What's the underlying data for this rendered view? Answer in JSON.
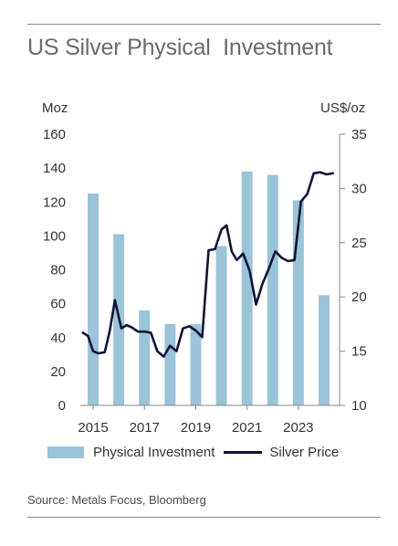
{
  "title": "US Silver Physical  Investment",
  "source": "Source: Metals Focus, Bloomberg",
  "chart_data": {
    "type": "bar+line",
    "left_axis": {
      "unit": "Moz",
      "min": 0,
      "max": 160,
      "ticks": [
        "0",
        "20",
        "40",
        "60",
        "80",
        "100",
        "120",
        "140",
        "160"
      ]
    },
    "right_axis": {
      "unit": "US$/oz",
      "min": 10,
      "max": 35,
      "ticks": [
        "10",
        "15",
        "20",
        "25",
        "30",
        "35"
      ]
    },
    "x_axis": {
      "min": 2014.5,
      "max": 2024.5,
      "tick_labels": [
        "2015",
        "2017",
        "2019",
        "2021",
        "2023"
      ],
      "tick_values": [
        2015,
        2017,
        2019,
        2021,
        2023
      ]
    },
    "series": [
      {
        "name": "Physical Investment",
        "kind": "bar",
        "axis": "left",
        "color": "#9bc4d8",
        "x": [
          2015,
          2016,
          2017,
          2018,
          2019,
          2020,
          2021,
          2022,
          2023,
          2024
        ],
        "values": [
          125,
          101,
          56,
          48,
          48,
          94,
          138,
          136,
          121,
          65
        ]
      },
      {
        "name": "Silver Price",
        "kind": "line",
        "axis": "right",
        "color": "#121338",
        "x": [
          2014.6,
          2014.8,
          2015.0,
          2015.2,
          2015.45,
          2015.65,
          2015.85,
          2016.1,
          2016.3,
          2016.5,
          2016.75,
          2017.0,
          2017.25,
          2017.5,
          2017.75,
          2018.0,
          2018.25,
          2018.5,
          2018.75,
          2019.0,
          2019.25,
          2019.5,
          2019.75,
          2020.0,
          2020.2,
          2020.4,
          2020.6,
          2020.85,
          2021.1,
          2021.35,
          2021.6,
          2021.85,
          2022.1,
          2022.35,
          2022.6,
          2022.85,
          2023.1,
          2023.35,
          2023.6,
          2023.85,
          2024.1,
          2024.35
        ],
        "values": [
          16.7,
          16.4,
          15.0,
          14.8,
          14.9,
          16.9,
          19.7,
          17.1,
          17.4,
          17.2,
          16.8,
          16.8,
          16.7,
          15.0,
          14.5,
          15.5,
          15.0,
          17.1,
          17.3,
          16.9,
          16.3,
          24.3,
          24.4,
          26.2,
          26.6,
          24.2,
          23.4,
          24.0,
          22.4,
          19.3,
          21.2,
          22.6,
          24.2,
          23.6,
          23.3,
          23.4,
          28.8,
          29.5,
          31.4,
          31.5,
          31.3,
          31.4
        ]
      }
    ],
    "legend_position": "bottom"
  }
}
